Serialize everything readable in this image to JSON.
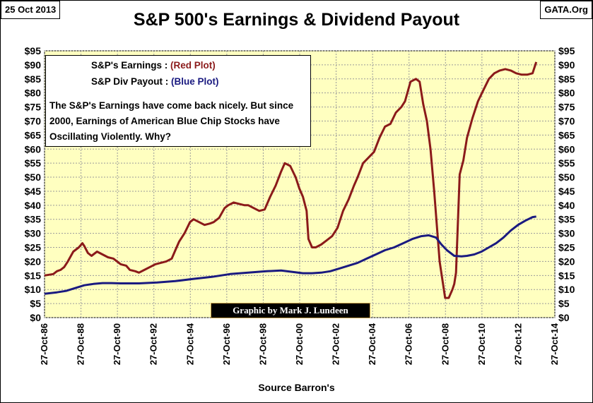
{
  "header": {
    "date": "25 Oct 2013",
    "site": "GATA.Org",
    "title": "S&P 500's Earnings & Dividend Payout"
  },
  "legend": {
    "earnings_label": "S&P's Earnings   :",
    "earnings_plot": "(Red Plot)",
    "div_label": "S&P Div Payout  :",
    "div_plot": "(Blue Plot)",
    "note": "The S&P's Earnings have come back nicely.  But since 2000, Earnings of American Blue Chip Stocks have Oscillating Violently.  Why?"
  },
  "credit": "Graphic by Mark J. Lundeen",
  "source": "Source Barron's",
  "colors": {
    "plot_background": "#ffffc0",
    "earnings": "#8b1a1a",
    "dividend": "#1a1a80",
    "grid": "#9a9a9a"
  },
  "chart_data": {
    "type": "line",
    "title": "S&P 500's Earnings & Dividend Payout",
    "xlabel": "Source Barron's",
    "ylabel": "",
    "xlim": [
      1986.82,
      2014.82
    ],
    "ylim": [
      0,
      95
    ],
    "grid": true,
    "x_tick_values": [
      1986.82,
      1988.82,
      1990.82,
      1992.82,
      1994.82,
      1996.82,
      1998.82,
      2000.82,
      2002.82,
      2004.82,
      2006.82,
      2008.82,
      2010.82,
      2012.82,
      2014.82
    ],
    "x_tick_labels": [
      "27-Oct-86",
      "27-Oct-88",
      "27-Oct-90",
      "27-Oct-92",
      "27-Oct-94",
      "27-Oct-96",
      "27-Oct-98",
      "27-Oct-00",
      "27-Oct-02",
      "27-Oct-04",
      "27-Oct-06",
      "27-Oct-08",
      "27-Oct-10",
      "27-Oct-12",
      "27-Oct-14"
    ],
    "y_tick_values": [
      0,
      5,
      10,
      15,
      20,
      25,
      30,
      35,
      40,
      45,
      50,
      55,
      60,
      65,
      70,
      75,
      80,
      85,
      90,
      95
    ],
    "y_tick_labels": [
      "$0",
      "$5",
      "$10",
      "$15",
      "$20",
      "$25",
      "$30",
      "$35",
      "$40",
      "$45",
      "$50",
      "$55",
      "$60",
      "$65",
      "$70",
      "$75",
      "$80",
      "$85",
      "$90",
      "$95"
    ],
    "series": [
      {
        "name": "S&P's Earnings",
        "color": "#8b1a1a",
        "x": [
          1986.82,
          1987.3,
          1987.5,
          1987.7,
          1987.9,
          1988.1,
          1988.4,
          1988.7,
          1988.9,
          1989.0,
          1989.2,
          1989.4,
          1989.7,
          1990.0,
          1990.3,
          1990.6,
          1990.8,
          1991.0,
          1991.3,
          1991.5,
          1991.8,
          1992.0,
          1992.3,
          1992.6,
          1992.9,
          1993.2,
          1993.5,
          1993.8,
          1994.0,
          1994.2,
          1994.5,
          1994.8,
          1995.0,
          1995.3,
          1995.6,
          1995.9,
          1996.1,
          1996.4,
          1996.7,
          1996.9,
          1997.2,
          1997.5,
          1997.8,
          1998.0,
          1998.3,
          1998.6,
          1998.9,
          1999.2,
          1999.5,
          1999.8,
          2000.0,
          2000.3,
          2000.6,
          2000.8,
          2001.0,
          2001.2,
          2001.3,
          2001.5,
          2001.7,
          2002.0,
          2002.3,
          2002.6,
          2002.9,
          2003.2,
          2003.5,
          2003.8,
          2004.0,
          2004.3,
          2004.6,
          2004.9,
          2005.2,
          2005.5,
          2005.8,
          2006.1,
          2006.4,
          2006.6,
          2006.9,
          2007.2,
          2007.4,
          2007.6,
          2007.8,
          2008.0,
          2008.2,
          2008.5,
          2008.8,
          2009.0,
          2009.2,
          2009.3,
          2009.4,
          2009.6,
          2009.8,
          2010.0,
          2010.3,
          2010.6,
          2010.9,
          2011.2,
          2011.5,
          2011.8,
          2012.1,
          2012.4,
          2012.7,
          2013.0,
          2013.3,
          2013.6,
          2013.8
        ],
        "values": [
          15,
          15.5,
          16.5,
          17,
          18,
          20,
          23.5,
          25,
          26.5,
          25.5,
          23,
          22,
          23.5,
          22.5,
          21.5,
          21,
          20,
          19,
          18.5,
          17,
          16.5,
          16,
          17,
          18,
          19,
          19.5,
          20,
          21,
          24,
          27,
          30,
          34,
          35,
          34,
          33,
          33.5,
          34,
          35.5,
          39,
          40,
          41,
          40.5,
          40,
          40,
          39,
          38,
          38.5,
          43,
          47,
          52,
          55,
          54,
          50,
          46,
          43,
          38,
          28,
          25,
          25,
          26,
          27.5,
          29,
          32,
          38,
          42,
          47,
          50,
          55,
          57,
          59,
          64,
          68,
          69,
          73,
          75,
          77,
          84,
          85,
          84,
          76,
          70,
          60,
          45,
          20,
          7,
          7,
          10,
          12,
          16,
          51,
          56,
          64,
          71,
          77,
          81,
          85,
          87,
          88,
          88.5,
          88,
          87,
          86.5,
          86.5,
          87,
          91
        ]
      },
      {
        "name": "S&P Div Payout",
        "color": "#1a1a80",
        "x": [
          1986.82,
          1987.5,
          1988.0,
          1988.5,
          1989.0,
          1989.5,
          1990.0,
          1990.5,
          1991.0,
          1992.0,
          1993.0,
          1994.0,
          1995.0,
          1996.0,
          1997.0,
          1998.0,
          1999.0,
          1999.8,
          2000.5,
          2001.0,
          2001.5,
          2002.0,
          2002.5,
          2003.0,
          2003.5,
          2004.0,
          2004.5,
          2005.0,
          2005.5,
          2006.0,
          2006.5,
          2007.0,
          2007.5,
          2007.9,
          2008.3,
          2008.6,
          2008.9,
          2009.3,
          2009.7,
          2010.0,
          2010.4,
          2010.8,
          2011.2,
          2011.6,
          2012.0,
          2012.4,
          2012.8,
          2013.2,
          2013.6,
          2013.8
        ],
        "values": [
          8.5,
          9,
          9.5,
          10.5,
          11.5,
          12,
          12.3,
          12.3,
          12.2,
          12.2,
          12.5,
          13,
          13.8,
          14.5,
          15.5,
          16,
          16.5,
          16.8,
          16.2,
          15.8,
          15.8,
          16,
          16.5,
          17.5,
          18.5,
          19.5,
          21,
          22.5,
          24,
          25,
          26.5,
          28,
          29,
          29.3,
          28.5,
          26,
          24,
          22,
          21.8,
          22,
          22.5,
          23.5,
          25,
          26.5,
          28.5,
          31,
          33,
          34.5,
          35.8,
          36
        ]
      }
    ]
  }
}
